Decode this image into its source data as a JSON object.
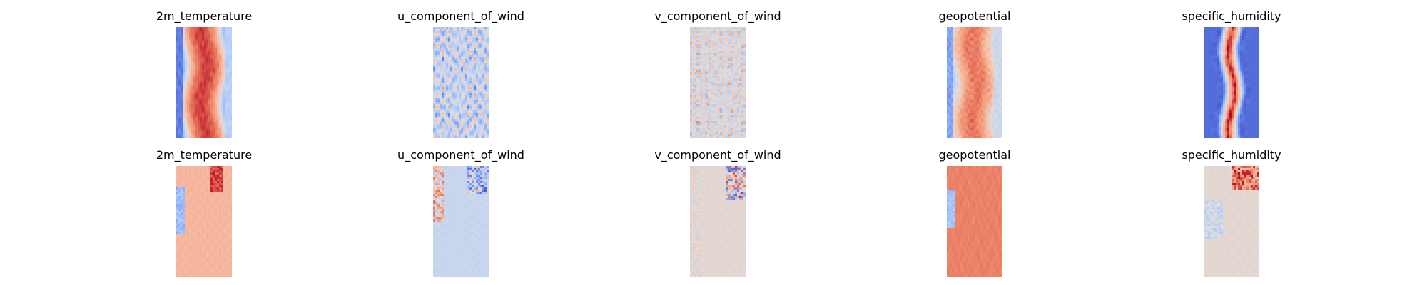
{
  "figure": {
    "background": "#ffffff"
  },
  "chart_data": [
    {
      "type": "heatmap",
      "row": 1,
      "col": 1,
      "title": "2m_temperature",
      "variable": "2m_temperature",
      "colormap": "coolwarm",
      "low_color": "#3b4cc0",
      "mid_color": "#dddddd",
      "high_color": "#b40426",
      "style": "temperature",
      "seed": 11,
      "grid": false,
      "axes_visible": false
    },
    {
      "type": "heatmap",
      "row": 1,
      "col": 2,
      "title": "u_component_of_wind",
      "variable": "u_component_of_wind",
      "colormap": "coolwarm",
      "style": "uwind",
      "seed": 23,
      "grid": false,
      "axes_visible": false
    },
    {
      "type": "heatmap",
      "row": 1,
      "col": 3,
      "title": "v_component_of_wind",
      "variable": "v_component_of_wind",
      "colormap": "coolwarm",
      "style": "vwind",
      "seed": 37,
      "grid": false,
      "axes_visible": false
    },
    {
      "type": "heatmap",
      "row": 1,
      "col": 4,
      "title": "geopotential",
      "variable": "geopotential",
      "colormap": "coolwarm",
      "style": "geopotential",
      "seed": 41,
      "grid": false,
      "axes_visible": false
    },
    {
      "type": "heatmap",
      "row": 1,
      "col": 5,
      "title": "specific_humidity",
      "variable": "specific_humidity",
      "colormap": "coolwarm",
      "style": "humidity",
      "seed": 53,
      "grid": false,
      "axes_visible": false
    },
    {
      "type": "heatmap",
      "row": 2,
      "col": 1,
      "title": "2m_temperature",
      "variable": "2m_temperature",
      "colormap": "coolwarm",
      "style": "temp_err",
      "seed": 61,
      "grid": false,
      "axes_visible": false
    },
    {
      "type": "heatmap",
      "row": 2,
      "col": 2,
      "title": "u_component_of_wind",
      "variable": "u_component_of_wind",
      "colormap": "coolwarm",
      "style": "uwind_err",
      "seed": 73,
      "grid": false,
      "axes_visible": false
    },
    {
      "type": "heatmap",
      "row": 2,
      "col": 3,
      "title": "v_component_of_wind",
      "variable": "v_component_of_wind",
      "colormap": "coolwarm",
      "style": "vwind_err",
      "seed": 83,
      "grid": false,
      "axes_visible": false
    },
    {
      "type": "heatmap",
      "row": 2,
      "col": 4,
      "title": "geopotential",
      "variable": "geopotential",
      "colormap": "coolwarm",
      "style": "geo_err",
      "seed": 97,
      "grid": false,
      "axes_visible": false
    },
    {
      "type": "heatmap",
      "row": 2,
      "col": 5,
      "title": "specific_humidity",
      "variable": "specific_humidity",
      "colormap": "coolwarm",
      "style": "hum_err",
      "seed": 101,
      "grid": false,
      "axes_visible": false
    }
  ]
}
